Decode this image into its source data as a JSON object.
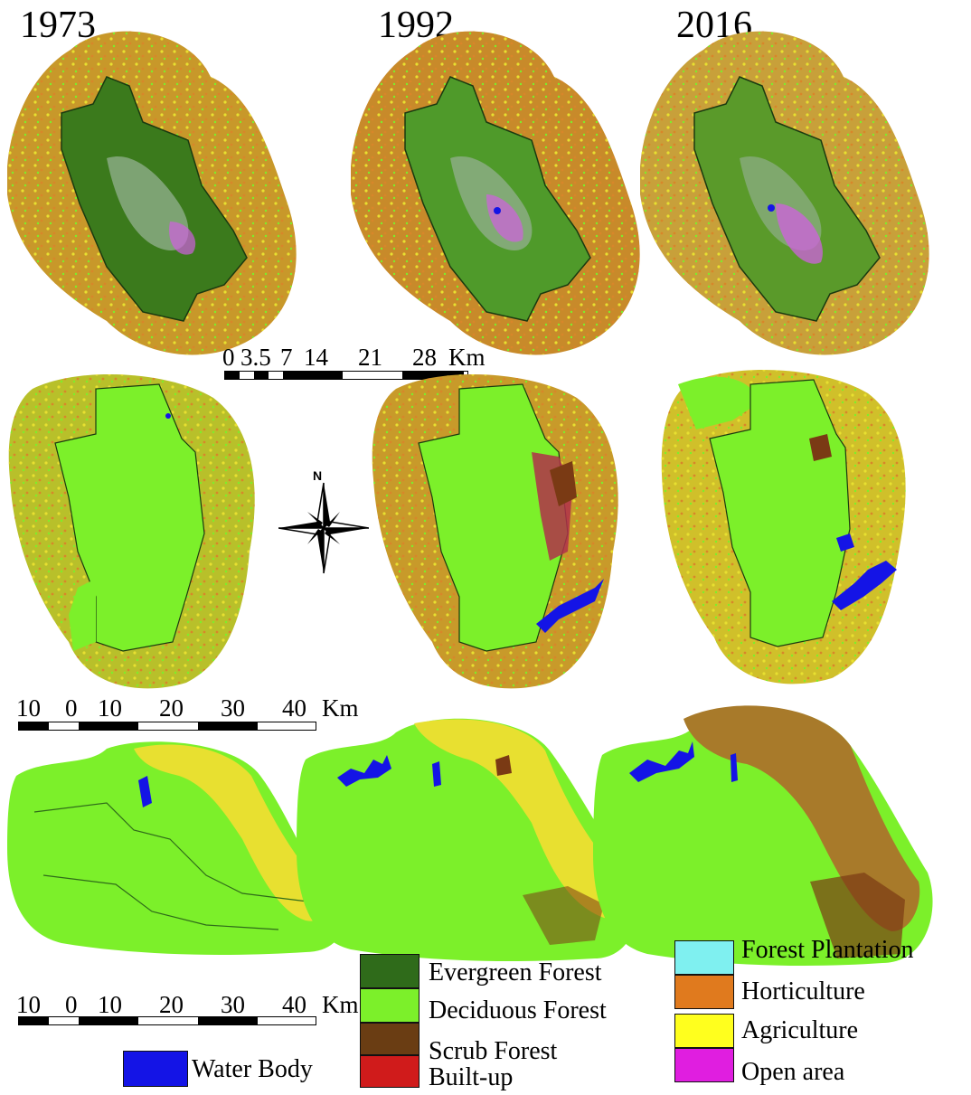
{
  "years": [
    "1973",
    "1992",
    "2016"
  ],
  "scale_bars": [
    {
      "labels": [
        "0",
        "3.5",
        "7",
        "14",
        "21",
        "28"
      ],
      "unit": "Km"
    },
    {
      "labels": [
        "10",
        "0",
        "10",
        "20",
        "30",
        "40"
      ],
      "unit": "Km"
    },
    {
      "labels": [
        "10",
        "0",
        "10",
        "20",
        "30",
        "40"
      ],
      "unit": "Km"
    }
  ],
  "north_arrow": {
    "label": "N"
  },
  "legend": [
    {
      "label": "Evergreen Forest",
      "color": "#2f6b1a"
    },
    {
      "label": "Deciduous Forest",
      "color": "#7cf02a"
    },
    {
      "label": "Scrub Forest",
      "color": "#6a3d13"
    },
    {
      "label": "Built-up",
      "color": "#d01b1b"
    },
    {
      "label": "Forest Plantation",
      "color": "#7ff0f0"
    },
    {
      "label": "Horticulture",
      "color": "#e07a1e"
    },
    {
      "label": "Agriculture",
      "color": "#ffff1e"
    },
    {
      "label": "Open area",
      "color": "#e01ee0"
    },
    {
      "label": "Water Body",
      "color": "#1414e6"
    }
  ],
  "colors": {
    "boundary": "#1a3a10",
    "evergreen": "#3b7a1c",
    "deciduous": "#7cf02a",
    "horticulture": "#d8862a",
    "agriculture": "#e8e030",
    "scrub": "#7a3a14",
    "builtup": "#b0304a",
    "openarea": "#d060e0",
    "water": "#1414e6"
  }
}
